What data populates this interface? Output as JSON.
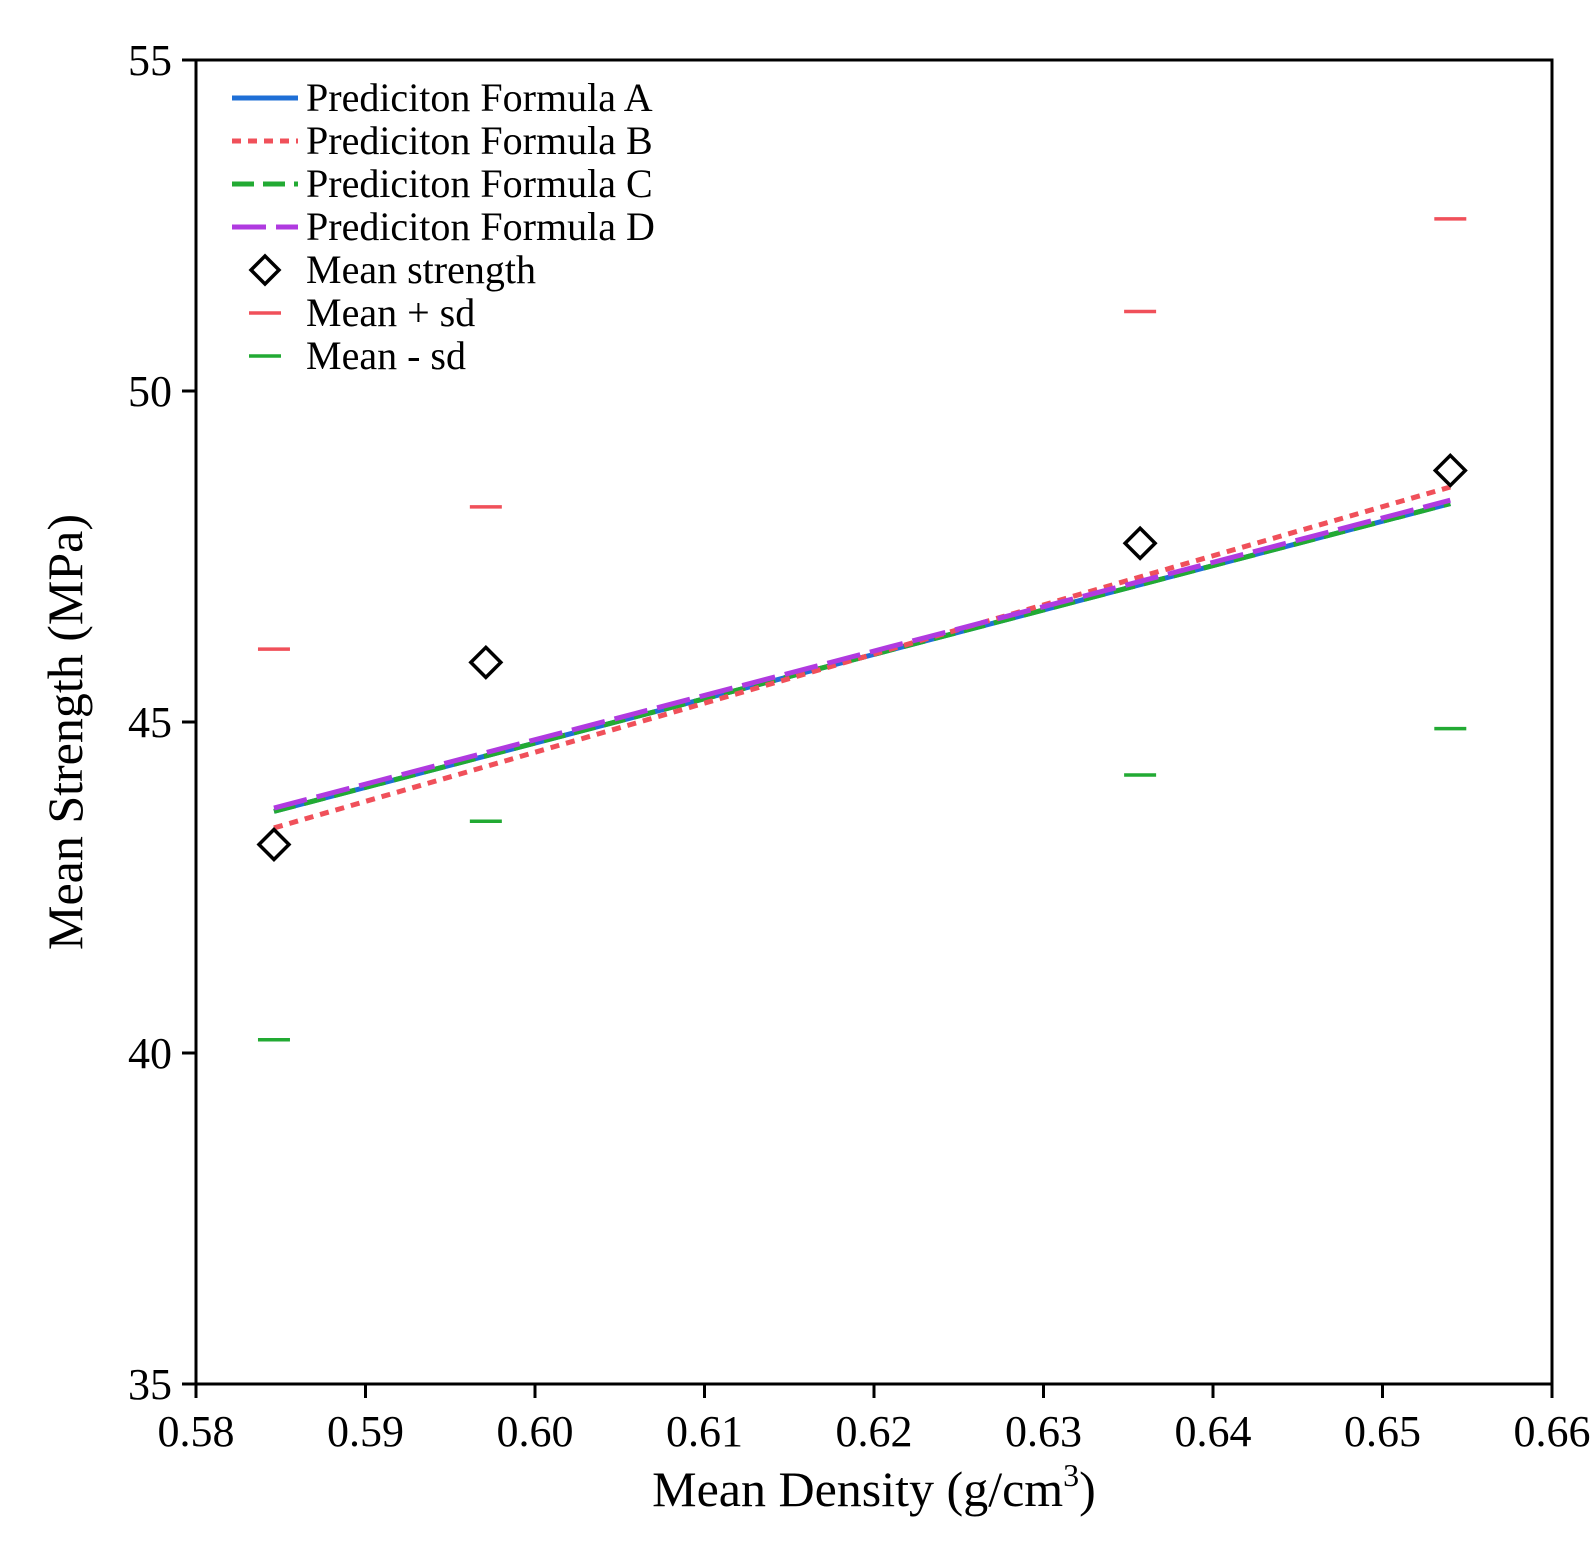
{
  "chart_data": {
    "type": "line",
    "title": "",
    "xlabel": "Mean Density (g/cm",
    "xlabel_superscript": "3",
    "xlabel_suffix": ")",
    "ylabel": "Mean Strength (MPa)",
    "xlim": [
      0.58,
      0.66
    ],
    "ylim": [
      35,
      55
    ],
    "x_ticks": [
      0.58,
      0.59,
      0.6,
      0.61,
      0.62,
      0.63,
      0.64,
      0.65,
      0.66
    ],
    "x_tick_labels": [
      "0.58",
      "0.59",
      "0.60",
      "0.61",
      "0.62",
      "0.63",
      "0.64",
      "0.65",
      "0.66"
    ],
    "y_ticks": [
      35,
      40,
      45,
      50,
      55
    ],
    "y_tick_labels": [
      "35",
      "40",
      "45",
      "50",
      "55"
    ],
    "grid": false,
    "legend_position": "top-left",
    "series": [
      {
        "name": "Prediciton Formula A",
        "kind": "line",
        "style": "solid",
        "color": "#1f6fd6",
        "x": [
          0.5846,
          0.654
        ],
        "y": [
          43.65,
          48.3
        ]
      },
      {
        "name": "Prediciton Formula B",
        "kind": "line",
        "style": "dotted",
        "color": "#f0505a",
        "x": [
          0.5846,
          0.654
        ],
        "y": [
          43.4,
          48.55
        ]
      },
      {
        "name": "Prediciton Formula C",
        "kind": "line",
        "style": "dashed",
        "color": "#22aa33",
        "x": [
          0.5846,
          0.654
        ],
        "y": [
          43.65,
          48.3
        ]
      },
      {
        "name": "Prediciton Formula D",
        "kind": "line",
        "style": "longdash",
        "color": "#b03ae0",
        "x": [
          0.5846,
          0.654
        ],
        "y": [
          43.7,
          48.35
        ]
      },
      {
        "name": "Mean strength",
        "kind": "diamond",
        "color": "#000000",
        "x": [
          0.5846,
          0.5971,
          0.6357,
          0.654
        ],
        "y": [
          43.15,
          45.9,
          47.7,
          48.8
        ]
      },
      {
        "name": "Mean + sd",
        "kind": "dash",
        "color": "#f0505a",
        "x": [
          0.5846,
          0.5971,
          0.6357,
          0.654
        ],
        "y": [
          46.1,
          48.25,
          51.2,
          52.6
        ]
      },
      {
        "name": "Mean - sd",
        "kind": "dash",
        "color": "#22aa33",
        "x": [
          0.5846,
          0.5971,
          0.6357,
          0.654
        ],
        "y": [
          40.2,
          43.5,
          44.2,
          44.9
        ]
      }
    ]
  }
}
